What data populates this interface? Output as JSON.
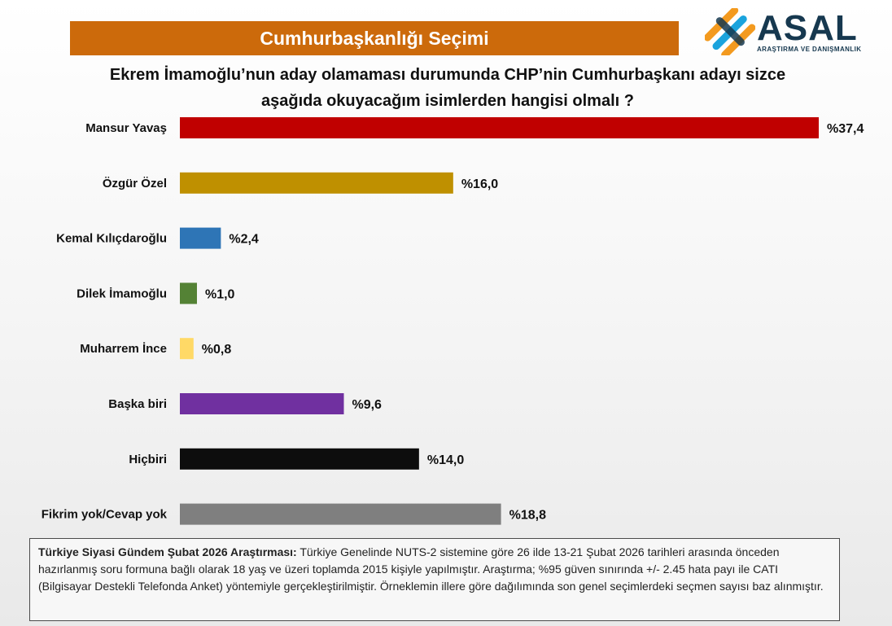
{
  "header": {
    "banner_title": "Cumhurbaşkanlığı Seçimi",
    "question_line1": "Ekrem İmamoğlu’nun aday olamaması durumunda CHP’nin Cumhurbaşkanı adayı sizce",
    "question_line2": "aşağıda okuyacağım isimlerden hangisi olmalı ?"
  },
  "logo": {
    "name": "ASAL",
    "tagline": "ARAŞTIRMA VE DANIŞMANLIK",
    "colors": [
      "#f39a1f",
      "#1aa3dd",
      "#16384f"
    ]
  },
  "chart_data": {
    "type": "bar",
    "orientation": "horizontal",
    "categories": [
      "Mansur Yavaş",
      "Özgür Özel",
      "Kemal Kılıçdaroğlu",
      "Dilek İmamoğlu",
      "Muharrem İnce",
      "Başka biri",
      "Hiçbiri",
      "Fikrim yok/Cevap yok"
    ],
    "values": [
      37.4,
      16.0,
      2.4,
      1.0,
      0.8,
      9.6,
      14.0,
      18.8
    ],
    "value_labels": [
      "%37,4",
      "%16,0",
      "%2,4",
      "%1,0",
      "%0,8",
      "%9,6",
      "%14,0",
      "%18,8"
    ],
    "colors": [
      "#c00000",
      "#bf9000",
      "#2e75b6",
      "#548235",
      "#ffd966",
      "#7030a0",
      "#0d0d0d",
      "#7f7f7f"
    ],
    "xlim": [
      0,
      37.4
    ],
    "title": "Cumhurbaşkanlığı Seçimi",
    "xlabel": "",
    "ylabel": "",
    "grid": false
  },
  "note": {
    "title": "Türkiye Siyasi Gündem Şubat 2026 Araştırması:",
    "text": "Türkiye Genelinde NUTS-2 sistemine göre 26 ilde 13-21 Şubat 2026 tarihleri arasında önceden hazırlanmış soru formuna bağlı olarak 18 yaş ve üzeri toplamda 2015 kişiyle yapılmıştır. Araştırma; %95 güven sınırında +/- 2.45 hata payı ile CATI (Bilgisayar Destekli Telefonda Anket) yöntemiyle gerçekleştirilmiştir. Örneklemin illere göre dağılımında son genel seçimlerdeki seçmen sayısı baz alınmıştır."
  }
}
